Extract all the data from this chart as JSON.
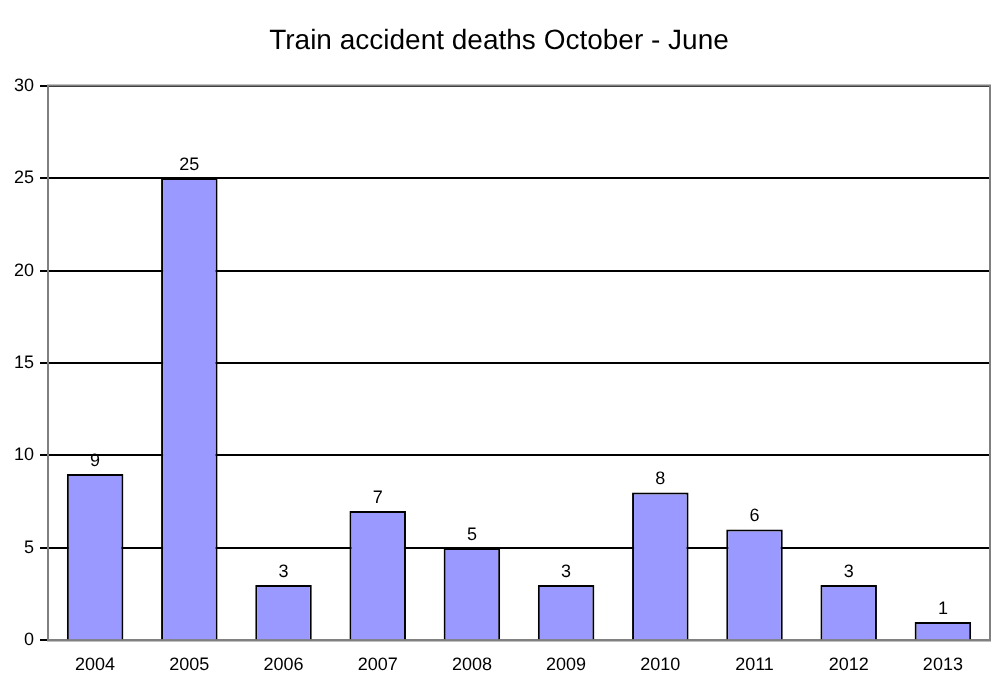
{
  "chart_data": {
    "type": "bar",
    "title": "Train accident deaths October - June",
    "categories": [
      "2004",
      "2005",
      "2006",
      "2007",
      "2008",
      "2009",
      "2010",
      "2011",
      "2012",
      "2013"
    ],
    "values": [
      9,
      25,
      3,
      7,
      5,
      3,
      8,
      6,
      3,
      1
    ],
    "color": "#9999ff",
    "ylim": [
      0,
      30
    ],
    "yticks": [
      0,
      5,
      10,
      15,
      20,
      25,
      30
    ],
    "grid": "y",
    "data_labels": true
  }
}
